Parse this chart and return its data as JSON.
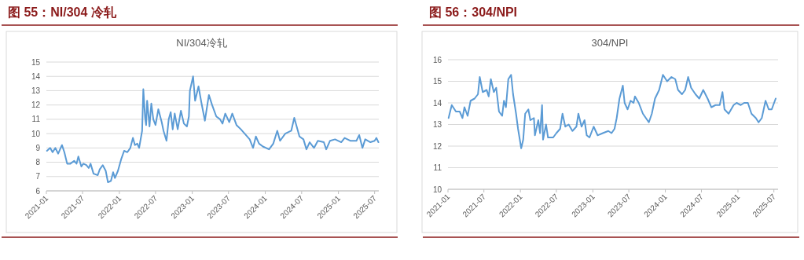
{
  "chart_data": [
    {
      "type": "line",
      "title": "图 55：NI/304 冷轧",
      "subtitle": "NI/304冷轧",
      "ylim": [
        6,
        15
      ],
      "yticks": [
        6,
        7,
        8,
        9,
        10,
        11,
        12,
        13,
        14,
        15
      ],
      "xlim": [
        "2021-01-01",
        "2025-07-22"
      ],
      "xticks": [
        "2021-01",
        "2021-07",
        "2022-01",
        "2022-07",
        "2023-01",
        "2023-07",
        "2024-01",
        "2024-07",
        "2025-01",
        "2025-07"
      ],
      "grid": "y",
      "x": [
        "2021-01-04",
        "2021-01-20",
        "2021-02-01",
        "2021-02-15",
        "2021-03-01",
        "2021-03-20",
        "2021-04-01",
        "2021-04-15",
        "2021-05-01",
        "2021-05-20",
        "2021-06-01",
        "2021-06-10",
        "2021-06-25",
        "2021-07-05",
        "2021-07-20",
        "2021-08-01",
        "2021-08-10",
        "2021-08-25",
        "2021-09-15",
        "2021-09-25",
        "2021-10-10",
        "2021-10-25",
        "2021-11-05",
        "2021-11-20",
        "2021-12-01",
        "2021-12-10",
        "2021-12-25",
        "2022-01-10",
        "2022-01-25",
        "2022-02-10",
        "2022-02-25",
        "2022-03-10",
        "2022-03-20",
        "2022-04-01",
        "2022-04-10",
        "2022-04-25",
        "2022-05-01",
        "2022-05-10",
        "2022-05-15",
        "2022-05-20",
        "2022-06-01",
        "2022-06-10",
        "2022-06-20",
        "2022-07-01",
        "2022-07-15",
        "2022-08-01",
        "2022-08-10",
        "2022-08-25",
        "2022-09-05",
        "2022-09-15",
        "2022-09-25",
        "2022-10-05",
        "2022-10-20",
        "2022-11-05",
        "2022-11-20",
        "2022-12-05",
        "2022-12-15",
        "2022-12-20",
        "2023-01-05",
        "2023-01-15",
        "2023-02-01",
        "2023-02-15",
        "2023-03-05",
        "2023-03-25",
        "2023-04-10",
        "2023-05-01",
        "2023-05-20",
        "2023-06-01",
        "2023-06-15",
        "2023-07-05",
        "2023-07-20",
        "2023-08-10",
        "2023-09-01",
        "2023-09-20",
        "2023-10-15",
        "2023-11-01",
        "2023-11-15",
        "2023-12-01",
        "2023-12-20",
        "2024-01-20",
        "2024-02-10",
        "2024-03-01",
        "2024-03-15",
        "2024-04-10",
        "2024-05-10",
        "2024-05-25",
        "2024-06-20",
        "2024-07-10",
        "2024-07-25",
        "2024-08-10",
        "2024-09-01",
        "2024-09-20",
        "2024-10-20",
        "2024-11-01",
        "2024-11-20",
        "2024-12-15",
        "2025-01-15",
        "2025-02-01",
        "2025-03-01",
        "2025-04-01",
        "2025-04-15",
        "2025-05-01",
        "2025-05-15",
        "2025-06-10",
        "2025-07-01",
        "2025-07-10",
        "2025-07-20"
      ],
      "series": [
        {
          "color": "#5b9bd5",
          "values": [
            8.8,
            9.0,
            8.7,
            9.0,
            8.6,
            9.2,
            8.7,
            7.9,
            7.9,
            8.1,
            7.9,
            8.4,
            7.7,
            7.9,
            7.8,
            7.6,
            7.9,
            7.2,
            7.1,
            7.5,
            7.8,
            7.4,
            6.6,
            6.7,
            7.3,
            6.9,
            7.4,
            8.2,
            8.8,
            8.7,
            9.0,
            9.7,
            9.2,
            9.3,
            9.0,
            10.2,
            13.1,
            11.1,
            10.6,
            12.3,
            10.5,
            12.1,
            11.0,
            10.6,
            11.7,
            10.8,
            10.2,
            9.5,
            11.0,
            11.5,
            10.3,
            11.4,
            10.3,
            11.6,
            10.7,
            10.5,
            11.2,
            13.0,
            14.0,
            12.3,
            13.3,
            12.2,
            10.9,
            12.7,
            12.0,
            11.2,
            11.0,
            10.7,
            11.4,
            10.8,
            11.4,
            10.6,
            10.3,
            10.0,
            9.6,
            9.0,
            9.8,
            9.3,
            9.1,
            8.9,
            9.3,
            10.2,
            9.5,
            10.0,
            10.2,
            11.1,
            9.8,
            9.6,
            8.9,
            9.4,
            9.0,
            9.5,
            9.4,
            8.9,
            9.5,
            9.6,
            9.4,
            9.7,
            9.5,
            9.5,
            9.9,
            9.0,
            9.6,
            9.4,
            9.5,
            9.7,
            9.4
          ]
        }
      ]
    },
    {
      "type": "line",
      "title": "图 56：304/NPI",
      "subtitle": "304/NPI",
      "ylim": [
        10,
        16
      ],
      "yticks": [
        10,
        11,
        12,
        13,
        14,
        15,
        16
      ],
      "xlim": [
        "2021-01-01",
        "2025-07-22"
      ],
      "xticks": [
        "2021-01",
        "2021-07",
        "2022-01",
        "2022-07",
        "2023-01",
        "2023-07",
        "2024-01",
        "2024-07",
        "2025-01",
        "2025-07"
      ],
      "grid": "y",
      "x": [
        "2021-01-04",
        "2021-01-20",
        "2021-02-10",
        "2021-03-01",
        "2021-03-15",
        "2021-03-25",
        "2021-04-10",
        "2021-04-25",
        "2021-05-15",
        "2021-06-01",
        "2021-06-10",
        "2021-06-25",
        "2021-07-15",
        "2021-07-25",
        "2021-08-05",
        "2021-08-20",
        "2021-09-01",
        "2021-09-15",
        "2021-10-01",
        "2021-10-10",
        "2021-10-20",
        "2021-11-01",
        "2021-11-15",
        "2021-11-25",
        "2021-12-10",
        "2021-12-20",
        "2022-01-05",
        "2022-01-15",
        "2022-01-25",
        "2022-02-10",
        "2022-02-20",
        "2022-03-10",
        "2022-03-15",
        "2022-04-01",
        "2022-04-10",
        "2022-04-20",
        "2022-04-25",
        "2022-05-10",
        "2022-05-20",
        "2022-06-15",
        "2022-07-01",
        "2022-07-20",
        "2022-08-01",
        "2022-08-15",
        "2022-09-01",
        "2022-09-20",
        "2022-10-10",
        "2022-10-20",
        "2022-11-05",
        "2022-11-20",
        "2022-12-01",
        "2022-12-15",
        "2023-01-05",
        "2023-01-25",
        "2023-02-20",
        "2023-03-20",
        "2023-04-05",
        "2023-04-20",
        "2023-05-01",
        "2023-05-15",
        "2023-06-01",
        "2023-06-10",
        "2023-06-25",
        "2023-07-10",
        "2023-07-25",
        "2023-08-01",
        "2023-08-20",
        "2023-09-10",
        "2023-09-25",
        "2023-10-10",
        "2023-10-25",
        "2023-11-10",
        "2023-12-01",
        "2023-12-20",
        "2024-01-10",
        "2024-02-01",
        "2024-02-20",
        "2024-03-05",
        "2024-03-25",
        "2024-04-10",
        "2024-04-25",
        "2024-05-10",
        "2024-06-01",
        "2024-06-20",
        "2024-07-10",
        "2024-08-01",
        "2024-08-20",
        "2024-09-10",
        "2024-10-01",
        "2024-10-15",
        "2024-10-25",
        "2024-11-15",
        "2024-12-10",
        "2024-12-25",
        "2025-01-15",
        "2025-02-01",
        "2025-02-20",
        "2025-03-10",
        "2025-04-01",
        "2025-04-15",
        "2025-05-01",
        "2025-05-20",
        "2025-06-05",
        "2025-06-20",
        "2025-07-10"
      ],
      "series": [
        {
          "color": "#5b9bd5",
          "values": [
            13.3,
            13.9,
            13.6,
            13.6,
            13.3,
            13.8,
            13.4,
            14.1,
            14.2,
            14.4,
            15.2,
            14.5,
            14.6,
            14.3,
            15.1,
            14.5,
            14.7,
            13.6,
            13.4,
            14.1,
            13.8,
            15.1,
            15.3,
            14.4,
            13.5,
            12.8,
            11.9,
            12.3,
            13.5,
            13.7,
            13.2,
            13.3,
            12.5,
            13.2,
            12.6,
            13.9,
            12.3,
            13.0,
            12.4,
            12.4,
            12.6,
            12.8,
            13.5,
            12.9,
            13.0,
            12.7,
            12.9,
            13.5,
            12.9,
            13.2,
            12.5,
            12.4,
            12.9,
            12.5,
            12.6,
            12.7,
            12.6,
            12.8,
            13.3,
            14.2,
            14.8,
            14.0,
            13.7,
            14.1,
            14.0,
            14.3,
            14.0,
            13.5,
            13.3,
            13.1,
            13.5,
            14.2,
            14.6,
            15.3,
            15.0,
            15.2,
            15.1,
            14.6,
            14.4,
            14.6,
            15.2,
            14.7,
            14.4,
            14.2,
            14.6,
            14.2,
            13.8,
            13.9,
            13.9,
            14.5,
            13.7,
            13.5,
            13.9,
            14.0,
            13.9,
            14.0,
            14.0,
            13.5,
            13.3,
            13.1,
            13.3,
            14.1,
            13.7,
            13.7,
            14.2
          ]
        }
      ]
    }
  ]
}
